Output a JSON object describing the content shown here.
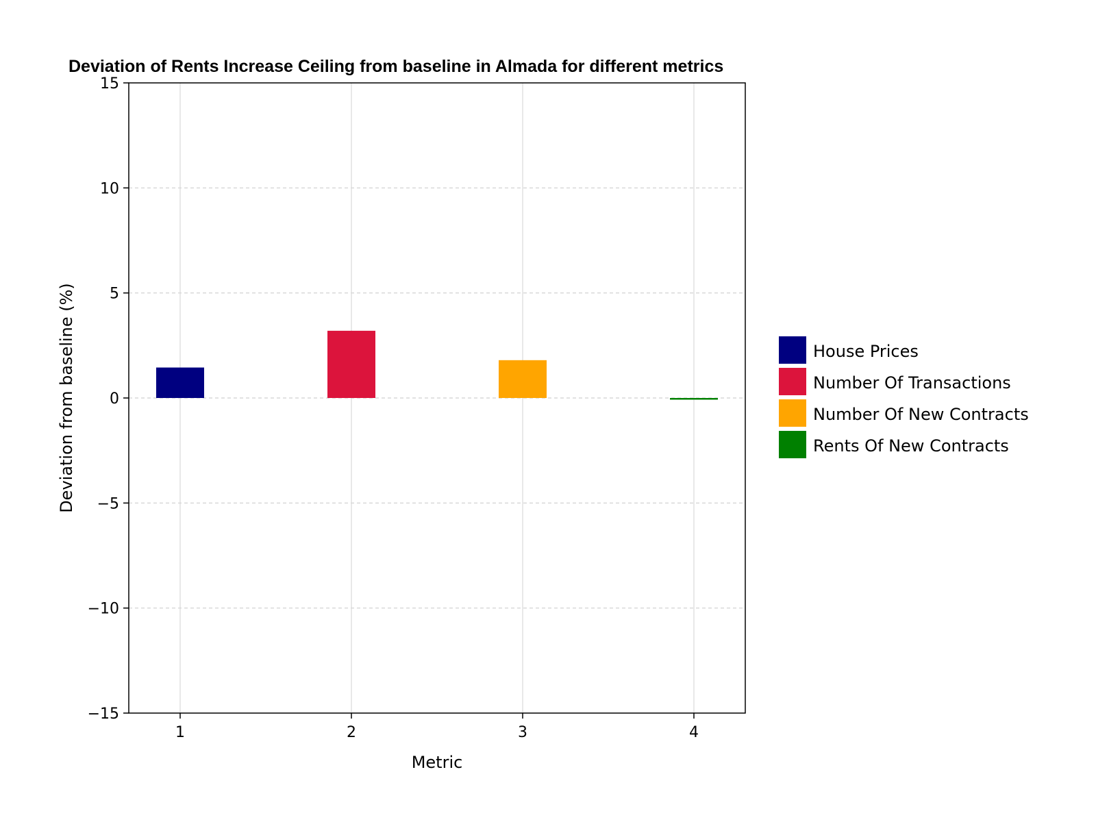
{
  "chart_data": {
    "type": "bar",
    "title": "Deviation of Rents Increase Ceiling from baseline in Almada for different metrics",
    "xlabel": "Metric",
    "ylabel": "Deviation from baseline (%)",
    "categories": [
      "1",
      "2",
      "3",
      "4"
    ],
    "series": [
      {
        "name": "House Prices",
        "x": 1,
        "value": 1.45,
        "color": "#000080"
      },
      {
        "name": "Number Of Transactions",
        "x": 2,
        "value": 3.2,
        "color": "#DC143C"
      },
      {
        "name": "Number Of New Contracts",
        "x": 3,
        "value": 1.8,
        "color": "#FFA500"
      },
      {
        "name": "Rents Of New Contracts",
        "x": 4,
        "value": -0.08,
        "color": "#008000"
      }
    ],
    "ylim": [
      -15,
      15
    ],
    "xlim": [
      0.7,
      4.3
    ],
    "yticks": [
      15,
      10,
      5,
      0,
      -5,
      -10,
      -15
    ],
    "ytick_labels": [
      "15",
      "10",
      "5",
      "0",
      "−5",
      "−10",
      "−15"
    ],
    "xticks": [
      1,
      2,
      3,
      4
    ],
    "xtick_labels": [
      "1",
      "2",
      "3",
      "4"
    ],
    "grid": true,
    "legend_position": "right"
  }
}
